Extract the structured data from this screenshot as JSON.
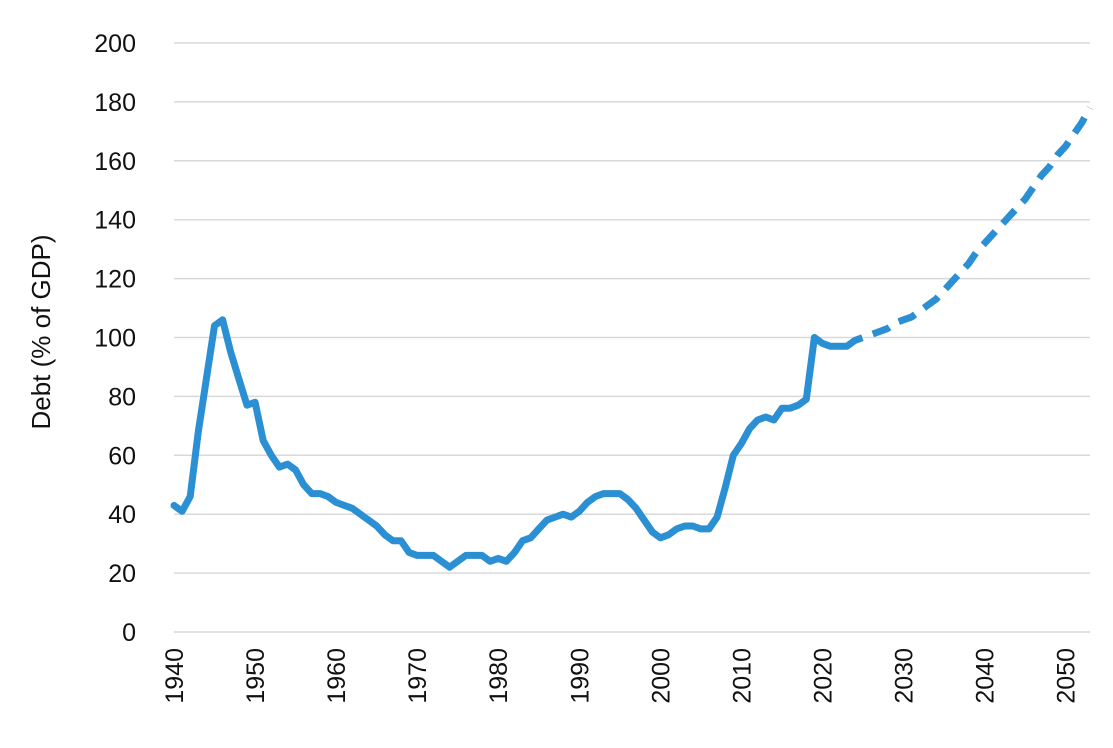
{
  "chart_data": {
    "type": "line",
    "title": "",
    "xlabel": "",
    "ylabel": "Debt (% of GDP)",
    "xlim": [
      1940,
      2053
    ],
    "ylim": [
      0,
      200
    ],
    "x_ticks": [
      1940,
      1950,
      1960,
      1970,
      1980,
      1990,
      2000,
      2010,
      2020,
      2030,
      2040,
      2050
    ],
    "y_ticks": [
      0,
      20,
      40,
      60,
      80,
      100,
      120,
      140,
      160,
      180,
      200
    ],
    "grid": "horizontal",
    "colors": {
      "line": "#2B8FD4",
      "grid": "#D9D9D9",
      "text": "#111111"
    },
    "series": [
      {
        "style": "solid",
        "x": [
          1940,
          1941,
          1942,
          1943,
          1944,
          1945,
          1946,
          1947,
          1948,
          1949,
          1950,
          1951,
          1952,
          1953,
          1954,
          1955,
          1956,
          1957,
          1958,
          1959,
          1960,
          1961,
          1962,
          1963,
          1964,
          1965,
          1966,
          1967,
          1968,
          1969,
          1970,
          1971,
          1972,
          1973,
          1974,
          1975,
          1976,
          1977,
          1978,
          1979,
          1980,
          1981,
          1982,
          1983,
          1984,
          1985,
          1986,
          1987,
          1988,
          1989,
          1990,
          1991,
          1992,
          1993,
          1994,
          1995,
          1996,
          1997,
          1998,
          1999,
          2000,
          2001,
          2002,
          2003,
          2004,
          2005,
          2006,
          2007,
          2008,
          2009,
          2010,
          2011,
          2012,
          2013,
          2014,
          2015,
          2016,
          2017,
          2018,
          2019,
          2020,
          2021,
          2022,
          2023
        ],
        "y": [
          43,
          41,
          46,
          68,
          86,
          104,
          106,
          95,
          86,
          77,
          78,
          65,
          60,
          56,
          57,
          55,
          50,
          47,
          47,
          46,
          44,
          43,
          42,
          40,
          38,
          36,
          33,
          31,
          31,
          27,
          26,
          26,
          26,
          24,
          22,
          24,
          26,
          26,
          26,
          24,
          25,
          24,
          27,
          31,
          32,
          35,
          38,
          39,
          40,
          39,
          41,
          44,
          46,
          47,
          47,
          47,
          45,
          42,
          38,
          34,
          32,
          33,
          35,
          36,
          36,
          35,
          35,
          39,
          49,
          60,
          64,
          69,
          72,
          73,
          72,
          76,
          76,
          77,
          79,
          100,
          98,
          97,
          97,
          97
        ]
      },
      {
        "style": "dashed",
        "x": [
          2023,
          2024,
          2025,
          2026,
          2027,
          2028,
          2029,
          2030,
          2031,
          2032,
          2033,
          2034,
          2035,
          2036,
          2037,
          2038,
          2039,
          2040,
          2041,
          2042,
          2043,
          2044,
          2045,
          2046,
          2047,
          2048,
          2049,
          2050,
          2051,
          2052,
          2053
        ],
        "y": [
          97,
          99,
          100,
          101,
          102,
          103,
          105,
          106,
          107,
          109,
          111,
          113,
          116,
          119,
          122,
          125,
          129,
          132,
          135,
          138,
          141,
          144,
          147,
          151,
          155,
          158,
          162,
          165,
          169,
          173,
          178
        ]
      }
    ]
  }
}
